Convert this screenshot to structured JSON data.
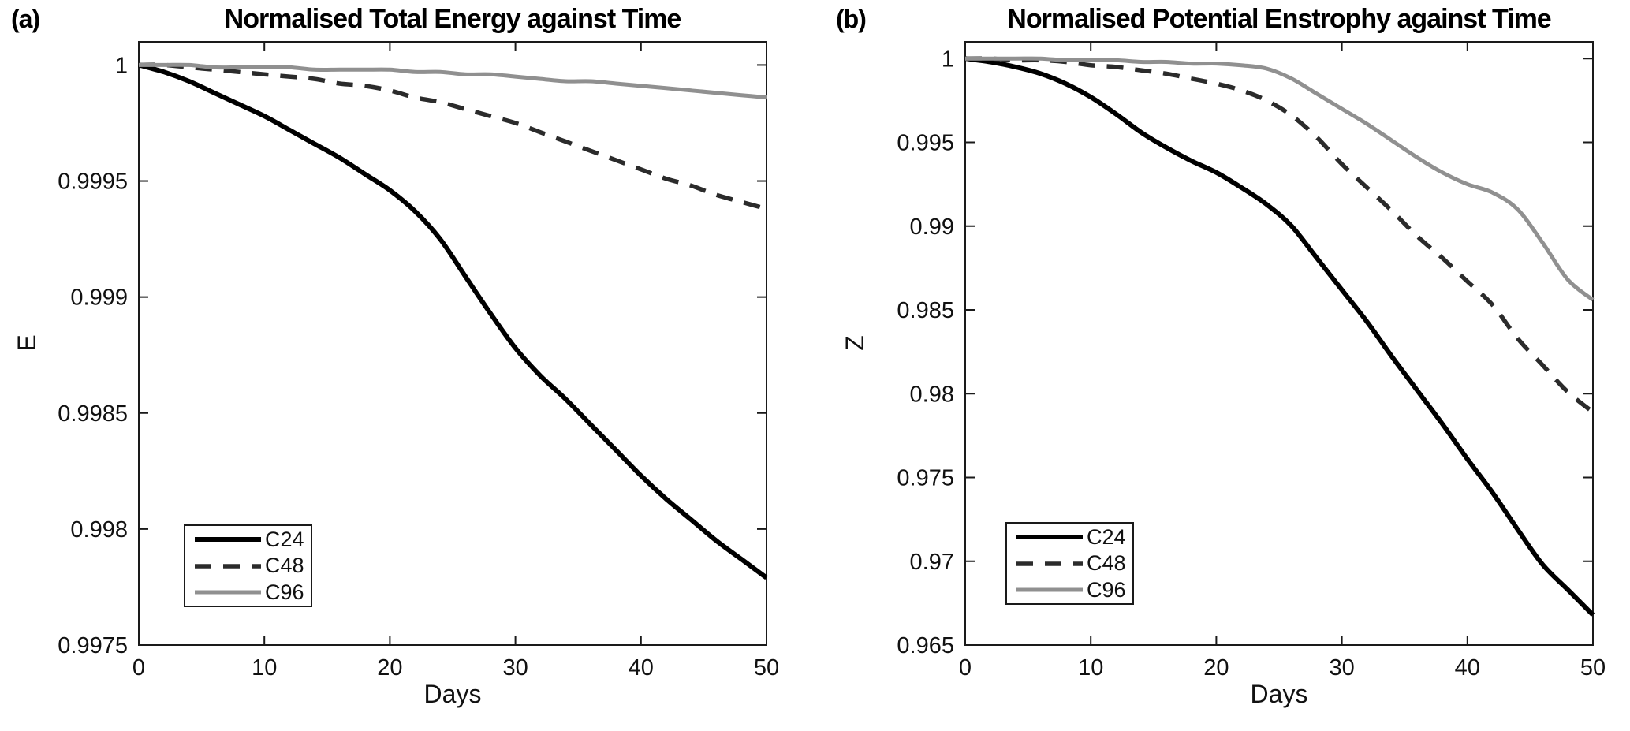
{
  "figure": {
    "background": "#ffffff",
    "axis_color": "#1a1a1a"
  },
  "panels": [
    {
      "letter": "(a)"
    },
    {
      "letter": "(b)"
    }
  ],
  "chart_data": [
    {
      "type": "line",
      "title": "Normalised Total Energy against Time",
      "xlabel": "Days",
      "ylabel": "E",
      "xlim": [
        0,
        50
      ],
      "ylim": [
        0.9975,
        1.0001
      ],
      "grid": false,
      "legend_position": "lower-left",
      "xticks": [
        0,
        10,
        20,
        30,
        40,
        50
      ],
      "xtick_labels": [
        "0",
        "10",
        "20",
        "30",
        "40",
        "50"
      ],
      "yticks": [
        1,
        0.9995,
        0.999,
        0.9985,
        0.998,
        0.9975
      ],
      "ytick_labels": [
        "1",
        "0.9995",
        "0.999",
        "0.9985",
        "0.998",
        "0.9975"
      ],
      "x": [
        0,
        2,
        4,
        6,
        8,
        10,
        12,
        14,
        16,
        18,
        20,
        22,
        24,
        26,
        28,
        30,
        32,
        34,
        36,
        38,
        40,
        42,
        44,
        46,
        48,
        50
      ],
      "series": [
        {
          "name": "C24",
          "color": "#000000",
          "style": "solid",
          "width": 6,
          "dasharray": "none",
          "values": [
            1.0,
            0.99997,
            0.99993,
            0.99988,
            0.99983,
            0.99978,
            0.99972,
            0.99966,
            0.9996,
            0.99953,
            0.99946,
            0.99937,
            0.99925,
            0.99909,
            0.99893,
            0.99878,
            0.99866,
            0.99856,
            0.99845,
            0.99834,
            0.99823,
            0.99813,
            0.99804,
            0.99795,
            0.99787,
            0.99779
          ]
        },
        {
          "name": "C48",
          "color": "#2b2b2b",
          "style": "dashed",
          "width": 5.5,
          "dasharray": "21 15",
          "values": [
            1.0,
            1.0,
            0.99999,
            0.99998,
            0.99997,
            0.99996,
            0.99995,
            0.99994,
            0.99992,
            0.99991,
            0.99989,
            0.99986,
            0.99984,
            0.99981,
            0.99978,
            0.99975,
            0.99971,
            0.99967,
            0.99963,
            0.99959,
            0.99955,
            0.99951,
            0.99948,
            0.99944,
            0.99941,
            0.99938
          ]
        },
        {
          "name": "C96",
          "color": "#909090",
          "style": "solid",
          "width": 5,
          "dasharray": "none",
          "values": [
            1.0,
            1.0,
            1.0,
            0.99999,
            0.99999,
            0.99999,
            0.99999,
            0.99998,
            0.99998,
            0.99998,
            0.99998,
            0.99997,
            0.99997,
            0.99996,
            0.99996,
            0.99995,
            0.99994,
            0.99993,
            0.99993,
            0.99992,
            0.99991,
            0.9999,
            0.99989,
            0.99988,
            0.99987,
            0.99986
          ]
        }
      ]
    },
    {
      "type": "line",
      "title": "Normalised Potential Enstrophy against Time",
      "xlabel": "Days",
      "ylabel": "Z",
      "xlim": [
        0,
        50
      ],
      "ylim": [
        0.965,
        1.001
      ],
      "grid": false,
      "legend_position": "lower-left",
      "xticks": [
        0,
        10,
        20,
        30,
        40,
        50
      ],
      "xtick_labels": [
        "0",
        "10",
        "20",
        "30",
        "40",
        "50"
      ],
      "yticks": [
        1,
        0.995,
        0.99,
        0.985,
        0.98,
        0.975,
        0.97,
        0.965
      ],
      "ytick_labels": [
        "1",
        "0.995",
        "0.99",
        "0.985",
        "0.98",
        "0.975",
        "0.97",
        "0.965"
      ],
      "x": [
        0,
        2,
        4,
        6,
        8,
        10,
        12,
        14,
        16,
        18,
        20,
        22,
        24,
        26,
        28,
        30,
        32,
        34,
        36,
        38,
        40,
        42,
        44,
        46,
        48,
        50
      ],
      "series": [
        {
          "name": "C24",
          "color": "#000000",
          "style": "solid",
          "width": 6,
          "dasharray": "none",
          "values": [
            1.0,
            0.9998,
            0.9995,
            0.9991,
            0.9985,
            0.9977,
            0.9967,
            0.9956,
            0.9947,
            0.9939,
            0.9932,
            0.9923,
            0.9913,
            0.99,
            0.9881,
            0.9862,
            0.9843,
            0.9822,
            0.9802,
            0.9782,
            0.9761,
            0.9741,
            0.9719,
            0.9698,
            0.9683,
            0.9668
          ]
        },
        {
          "name": "C48",
          "color": "#2b2b2b",
          "style": "dashed",
          "width": 5.5,
          "dasharray": "21 15",
          "values": [
            1.0,
            1.0,
            0.9999,
            0.9999,
            0.9998,
            0.9996,
            0.9995,
            0.9993,
            0.9991,
            0.9988,
            0.9985,
            0.9981,
            0.9975,
            0.9966,
            0.9953,
            0.9937,
            0.9923,
            0.9909,
            0.9894,
            0.9881,
            0.9867,
            0.9853,
            0.9833,
            0.9817,
            0.9801,
            0.9789
          ]
        },
        {
          "name": "C96",
          "color": "#909090",
          "style": "solid",
          "width": 5,
          "dasharray": "none",
          "values": [
            1.0,
            1.0,
            1.0,
            1.0,
            0.9999,
            0.9999,
            0.9999,
            0.9998,
            0.9998,
            0.9997,
            0.9997,
            0.9996,
            0.9994,
            0.9988,
            0.9979,
            0.997,
            0.9961,
            0.9951,
            0.9941,
            0.9932,
            0.9925,
            0.992,
            0.991,
            0.989,
            0.9868,
            0.9856
          ]
        }
      ]
    }
  ]
}
